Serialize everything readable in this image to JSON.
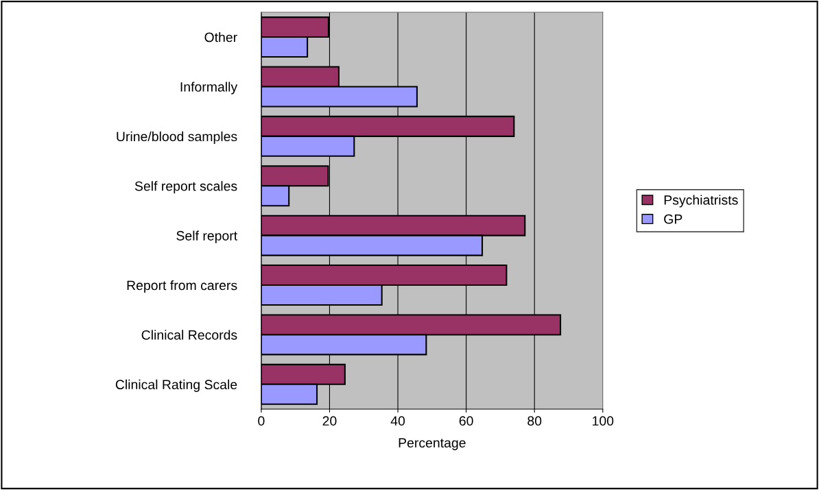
{
  "chart_data": {
    "type": "bar",
    "orientation": "horizontal",
    "xlabel": "Percentage",
    "categories": [
      "Other",
      "Informally",
      "Urine/blood samples",
      "Self report scales",
      "Self report",
      "Report from carers",
      "Clinical Records",
      "Clinical Rating Scale"
    ],
    "series": [
      {
        "name": "Psychiatrists",
        "color": "#993366",
        "values": [
          19.7,
          22.7,
          74.0,
          19.6,
          77.2,
          71.8,
          87.6,
          24.5
        ]
      },
      {
        "name": "GP",
        "color": "#9999ff",
        "values": [
          13.5,
          45.6,
          27.2,
          8.1,
          64.7,
          35.3,
          48.3,
          16.3
        ]
      }
    ],
    "xlim": [
      0,
      100
    ],
    "xticks": [
      0,
      20,
      40,
      60,
      80,
      100
    ],
    "grid": "x",
    "legend": "right"
  }
}
